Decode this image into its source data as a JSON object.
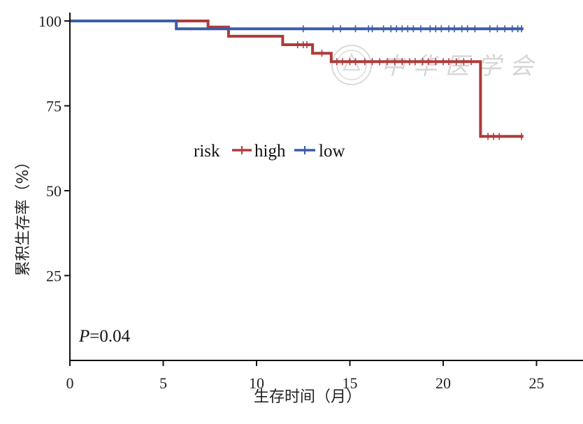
{
  "chart_data": {
    "type": "line",
    "subtype": "kaplan-meier survival curve (step)",
    "xlabel": "生存时间（月）",
    "ylabel": "累积生存率（%）",
    "xlim": [
      0,
      27
    ],
    "ylim": [
      0,
      102
    ],
    "xticks": [
      0,
      5,
      10,
      15,
      20,
      25
    ],
    "yticks": [
      25,
      50,
      75,
      100
    ],
    "legend_title": "risk",
    "legend_position": "center",
    "annotation": {
      "italic": "P",
      "rest": "=0.04"
    },
    "watermark": "中华医学会",
    "series": [
      {
        "name": "high",
        "color": "#b03a3a",
        "steps": [
          [
            0,
            100
          ],
          [
            7.4,
            100
          ],
          [
            7.4,
            98.2
          ],
          [
            8.5,
            98.2
          ],
          [
            8.5,
            95.5
          ],
          [
            11.4,
            95.5
          ],
          [
            11.4,
            93
          ],
          [
            13,
            93
          ],
          [
            13,
            90.5
          ],
          [
            14,
            90.5
          ],
          [
            14,
            88
          ],
          [
            22,
            88
          ],
          [
            22,
            66
          ],
          [
            24.3,
            66
          ]
        ],
        "censored": [
          [
            12.2,
            93
          ],
          [
            12.5,
            93
          ],
          [
            12.7,
            93
          ],
          [
            13.5,
            90.5
          ],
          [
            14.3,
            88
          ],
          [
            14.6,
            88
          ],
          [
            15,
            88
          ],
          [
            15.3,
            88
          ],
          [
            15.8,
            88
          ],
          [
            16.2,
            88
          ],
          [
            16.6,
            88
          ],
          [
            17,
            88
          ],
          [
            17.4,
            88
          ],
          [
            17.8,
            88
          ],
          [
            18.2,
            88
          ],
          [
            18.5,
            88
          ],
          [
            18.9,
            88
          ],
          [
            19.2,
            88
          ],
          [
            19.6,
            88
          ],
          [
            20.0,
            88
          ],
          [
            20.3,
            88
          ],
          [
            20.7,
            88
          ],
          [
            21.1,
            88
          ],
          [
            21.5,
            88
          ],
          [
            22.4,
            66
          ],
          [
            22.7,
            66
          ],
          [
            23.0,
            66
          ],
          [
            24.2,
            66
          ]
        ]
      },
      {
        "name": "low",
        "color": "#3b5ca8",
        "steps": [
          [
            0,
            100
          ],
          [
            5.7,
            100
          ],
          [
            5.7,
            97.7
          ],
          [
            24.3,
            97.7
          ]
        ],
        "censored": [
          [
            12.5,
            97.7
          ],
          [
            14.1,
            97.7
          ],
          [
            14.5,
            97.7
          ],
          [
            15.3,
            97.7
          ],
          [
            16.0,
            97.7
          ],
          [
            16.2,
            97.7
          ],
          [
            16.8,
            97.7
          ],
          [
            17.2,
            97.7
          ],
          [
            17.5,
            97.7
          ],
          [
            17.8,
            97.7
          ],
          [
            18.1,
            97.7
          ],
          [
            18.4,
            97.7
          ],
          [
            18.8,
            97.7
          ],
          [
            19.3,
            97.7
          ],
          [
            19.6,
            97.7
          ],
          [
            19.9,
            97.7
          ],
          [
            20.3,
            97.7
          ],
          [
            20.6,
            97.7
          ],
          [
            21.0,
            97.7
          ],
          [
            21.3,
            97.7
          ],
          [
            21.7,
            97.7
          ],
          [
            22.5,
            97.7
          ],
          [
            22.9,
            97.7
          ],
          [
            23.3,
            97.7
          ],
          [
            23.7,
            97.7
          ],
          [
            24.0,
            97.7
          ],
          [
            24.2,
            97.7
          ]
        ]
      }
    ]
  }
}
